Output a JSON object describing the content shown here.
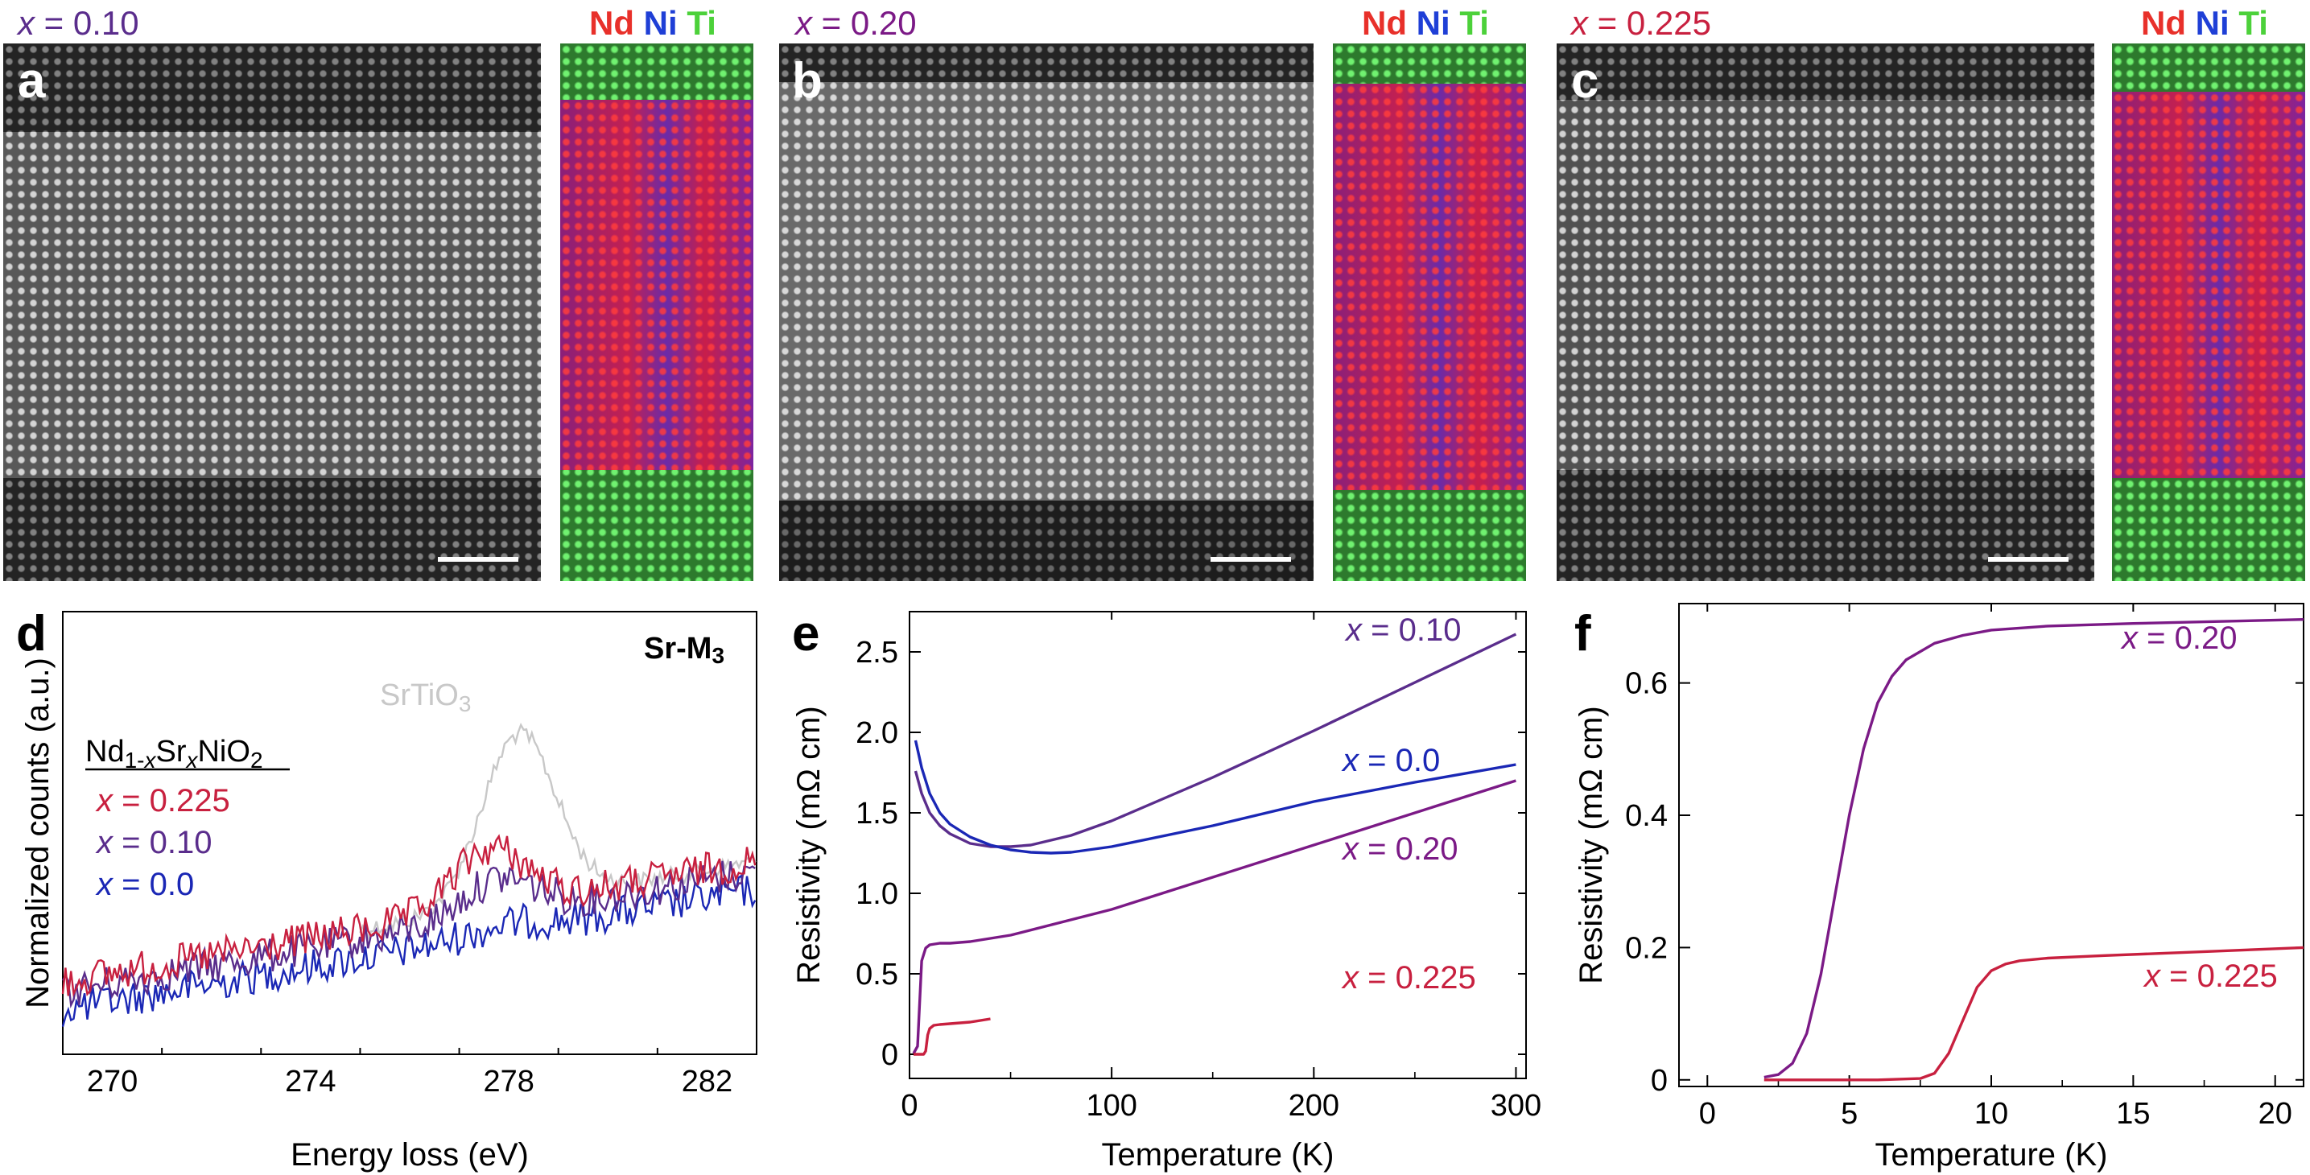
{
  "top_row": {
    "panels": [
      {
        "letter": "a",
        "x_label": "x",
        "x_value": " = 0.10",
        "color": "#5a2d8c"
      },
      {
        "letter": "b",
        "x_label": "x",
        "x_value": " = 0.20",
        "color": "#7b1a86"
      },
      {
        "letter": "c",
        "x_label": "x",
        "x_value": " = 0.225",
        "color": "#c8203f"
      }
    ],
    "elements": {
      "nd": "Nd",
      "ni": "Ni",
      "ti": "Ti",
      "nd_color": "#e8302a",
      "ni_color": "#1f3fd6",
      "ti_color": "#4cd13a"
    }
  },
  "panel_letters": {
    "d": "d",
    "e": "e",
    "f": "f"
  },
  "chart_data": [
    {
      "type": "line",
      "panel": "d",
      "xlabel": "Energy loss (eV)",
      "ylabel": "Normalized counts (a.u.)",
      "edge_label": "Sr-M",
      "edge_sub": "3",
      "xlim": [
        269,
        283
      ],
      "x_ticks": [
        270,
        274,
        278,
        282
      ],
      "legend": {
        "formula_a": "Nd",
        "formula_b": "1-",
        "formula_c": "x",
        "formula_d": "Sr",
        "formula_e": "x",
        "formula_f": "NiO",
        "formula_g": "2"
      },
      "series": [
        {
          "name": "SrTiO3",
          "label_a": "SrTiO",
          "label_b": "3",
          "color": "#c8c8c8",
          "peak_x": 278.2,
          "peak_h": 1.0
        },
        {
          "name": "x = 0.225",
          "label_a": "x",
          "label_b": " = 0.225",
          "color": "#c8203f",
          "peak_x": 277.6,
          "peak_h": 0.35
        },
        {
          "name": "x = 0.10",
          "label_a": "x",
          "label_b": " = 0.10",
          "color": "#5a2d8c",
          "peak_x": 277.8,
          "peak_h": 0.22
        },
        {
          "name": "x = 0.0",
          "label_a": "x",
          "label_b": " = 0.0",
          "color": "#1a27b5",
          "peak_x": 278.0,
          "peak_h": 0.05
        }
      ]
    },
    {
      "type": "line",
      "panel": "e",
      "xlabel": "Temperature (K)",
      "ylabel": "Resistivity (mΩ cm)",
      "xlim": [
        0,
        305
      ],
      "ylim": [
        -0.15,
        2.75
      ],
      "x_ticks": [
        0,
        100,
        200,
        300
      ],
      "y_ticks": [
        0,
        0.5,
        1.0,
        1.5,
        2.0,
        2.5
      ],
      "y_tick_labels": [
        "0",
        "0.5",
        "1.0",
        "1.5",
        "2.0",
        "2.5"
      ],
      "series": [
        {
          "name": "x = 0.10",
          "label_a": "x",
          "label_b": " = 0.10",
          "color": "#5a2d8c",
          "x": [
            3,
            6,
            10,
            15,
            20,
            30,
            40,
            50,
            60,
            80,
            100,
            150,
            200,
            250,
            300
          ],
          "y": [
            1.76,
            1.62,
            1.5,
            1.42,
            1.37,
            1.31,
            1.29,
            1.29,
            1.3,
            1.36,
            1.45,
            1.72,
            2.01,
            2.31,
            2.61
          ]
        },
        {
          "name": "x = 0.0",
          "label_a": "x",
          "label_b": " = 0.0",
          "color": "#1a27b5",
          "x": [
            3,
            6,
            10,
            15,
            20,
            30,
            40,
            50,
            60,
            70,
            80,
            100,
            150,
            200,
            250,
            300
          ],
          "y": [
            1.95,
            1.78,
            1.62,
            1.5,
            1.43,
            1.35,
            1.3,
            1.27,
            1.255,
            1.25,
            1.255,
            1.29,
            1.42,
            1.57,
            1.69,
            1.8
          ]
        },
        {
          "name": "x = 0.20",
          "label_a": "x",
          "label_b": " = 0.20",
          "color": "#7b1a86",
          "x": [
            2,
            4,
            5,
            6,
            8,
            10,
            15,
            20,
            30,
            50,
            100,
            150,
            200,
            250,
            300
          ],
          "y": [
            0.005,
            0.05,
            0.32,
            0.58,
            0.66,
            0.68,
            0.69,
            0.69,
            0.7,
            0.74,
            0.9,
            1.1,
            1.3,
            1.5,
            1.7
          ]
        },
        {
          "name": "x = 0.225",
          "label_a": "x",
          "label_b": " = 0.225",
          "color": "#c8203f",
          "x": [
            2,
            7,
            8,
            9,
            10,
            12,
            15,
            20,
            30,
            40
          ],
          "y": [
            0.0,
            0.0,
            0.02,
            0.12,
            0.16,
            0.18,
            0.185,
            0.19,
            0.2,
            0.22
          ]
        }
      ]
    },
    {
      "type": "line",
      "panel": "f",
      "xlabel": "Temperature (K)",
      "ylabel": "Resistivity (mΩ cm)",
      "xlim": [
        -1,
        21
      ],
      "ylim": [
        -0.01,
        0.72
      ],
      "x_ticks": [
        0,
        5,
        10,
        15,
        20
      ],
      "y_ticks": [
        0,
        0.2,
        0.4,
        0.6
      ],
      "y_tick_labels": [
        "0",
        "0.2",
        "0.4",
        "0.6"
      ],
      "series": [
        {
          "name": "x = 0.20",
          "label_a": "x",
          "label_b": " = 0.20",
          "color": "#7b1a86",
          "x": [
            2,
            2.5,
            3,
            3.5,
            4,
            4.5,
            5,
            5.5,
            6,
            6.5,
            7,
            8,
            9,
            10,
            12,
            15,
            18,
            21
          ],
          "y": [
            0.004,
            0.008,
            0.025,
            0.07,
            0.16,
            0.28,
            0.4,
            0.5,
            0.57,
            0.61,
            0.635,
            0.66,
            0.672,
            0.68,
            0.686,
            0.69,
            0.693,
            0.696
          ]
        },
        {
          "name": "x = 0.225",
          "label_a": "x",
          "label_b": " = 0.225",
          "color": "#c8203f",
          "x": [
            2,
            4,
            6,
            7.5,
            8,
            8.5,
            9,
            9.5,
            10,
            10.5,
            11,
            12,
            14,
            17,
            21
          ],
          "y": [
            0.0,
            0.0,
            0.0,
            0.002,
            0.01,
            0.04,
            0.09,
            0.14,
            0.165,
            0.175,
            0.18,
            0.184,
            0.188,
            0.193,
            0.2
          ]
        }
      ]
    }
  ]
}
